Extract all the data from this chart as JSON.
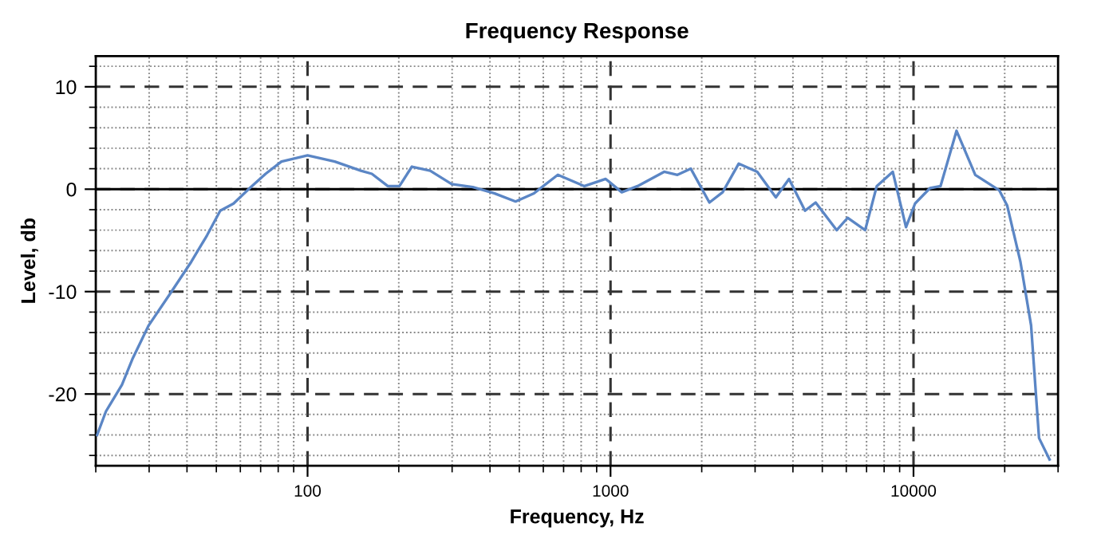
{
  "chart_data": {
    "type": "line",
    "title": "Frequency Response",
    "xlabel": "Frequency, Hz",
    "ylabel": "Level, db",
    "log": "x",
    "grid": true,
    "marker": "none",
    "line_style": "solid",
    "xlim": [
      20,
      30000
    ],
    "ylim": [
      -27,
      13
    ],
    "xticks": [
      {
        "value": 20,
        "label": null
      },
      {
        "value": 30,
        "label": null
      },
      {
        "value": 40,
        "label": null
      },
      {
        "value": 50,
        "label": null
      },
      {
        "value": 60,
        "label": null
      },
      {
        "value": 70,
        "label": null
      },
      {
        "value": 80,
        "label": null
      },
      {
        "value": 90,
        "label": null
      },
      100,
      {
        "value": 200,
        "label": null
      },
      {
        "value": 300,
        "label": null
      },
      {
        "value": 400,
        "label": null
      },
      {
        "value": 500,
        "label": null
      },
      {
        "value": 600,
        "label": null
      },
      {
        "value": 700,
        "label": null
      },
      {
        "value": 800,
        "label": null
      },
      {
        "value": 900,
        "label": null
      },
      1000,
      {
        "value": 2000,
        "label": null
      },
      {
        "value": 3000,
        "label": null
      },
      {
        "value": 4000,
        "label": null
      },
      {
        "value": 5000,
        "label": null
      },
      {
        "value": 6000,
        "label": null
      },
      {
        "value": 7000,
        "label": null
      },
      {
        "value": 8000,
        "label": null
      },
      {
        "value": 9000,
        "label": null
      },
      10000,
      {
        "value": 20000,
        "label": null
      },
      {
        "value": 30000,
        "label": null
      }
    ],
    "yticks": [
      {
        "value": -26,
        "label": null
      },
      {
        "value": -24,
        "label": null
      },
      {
        "value": -22,
        "label": null
      },
      -20,
      {
        "value": -18,
        "label": null
      },
      {
        "value": -16,
        "label": null
      },
      {
        "value": -14,
        "label": null
      },
      {
        "value": -12,
        "label": null
      },
      -10,
      {
        "value": -8,
        "label": null
      },
      {
        "value": -6,
        "label": null
      },
      {
        "value": -4,
        "label": null
      },
      {
        "value": -2,
        "label": null
      },
      0,
      {
        "value": 2,
        "label": null
      },
      {
        "value": 4,
        "label": null
      },
      {
        "value": 6,
        "label": null
      },
      {
        "value": 8,
        "label": null
      },
      10,
      {
        "value": 12,
        "label": null
      }
    ],
    "ref_lines": [
      {
        "axis": "y",
        "value": 0,
        "color": "#000000",
        "line_style": "solid"
      }
    ],
    "series": [
      {
        "color": "#5b86c5",
        "x": [
          20.2,
          21.6,
          24.4,
          26.5,
          29.9,
          35.2,
          41.3,
          46.6,
          51.5,
          57,
          64.4,
          72.7,
          82,
          100,
          123,
          150,
          163,
          184,
          201,
          221,
          254,
          299,
          351,
          413,
          486,
          559,
          670,
          820,
          964,
          1089,
          1228,
          1503,
          1663,
          1841,
          2120,
          2344,
          2650,
          3050,
          3513,
          3882,
          4385,
          4753,
          5581,
          6060,
          6925,
          7565,
          8541,
          9446,
          10120,
          11330,
          12280,
          13870,
          15990,
          19180,
          20380,
          22540,
          24440,
          25960,
          28120
        ],
        "values": [
          -24.0,
          -21.7,
          -19.1,
          -16.5,
          -13.3,
          -10.2,
          -7.1,
          -4.5,
          -2.1,
          -1.4,
          0.1,
          1.5,
          2.7,
          3.3,
          2.7,
          1.8,
          1.5,
          0.3,
          0.3,
          2.2,
          1.8,
          0.5,
          0.2,
          -0.4,
          -1.2,
          -0.4,
          1.4,
          0.3,
          1.0,
          -0.3,
          0.3,
          1.7,
          1.4,
          2.0,
          -1.3,
          -0.3,
          2.5,
          1.7,
          -0.8,
          1.0,
          -2.1,
          -1.3,
          -4.0,
          -2.8,
          -4.0,
          0.3,
          1.7,
          -3.7,
          -1.4,
          0.1,
          0.3,
          5.7,
          1.4,
          -0.1,
          -1.6,
          -7.1,
          -13.3,
          -24.3,
          -26.4
        ]
      }
    ]
  }
}
